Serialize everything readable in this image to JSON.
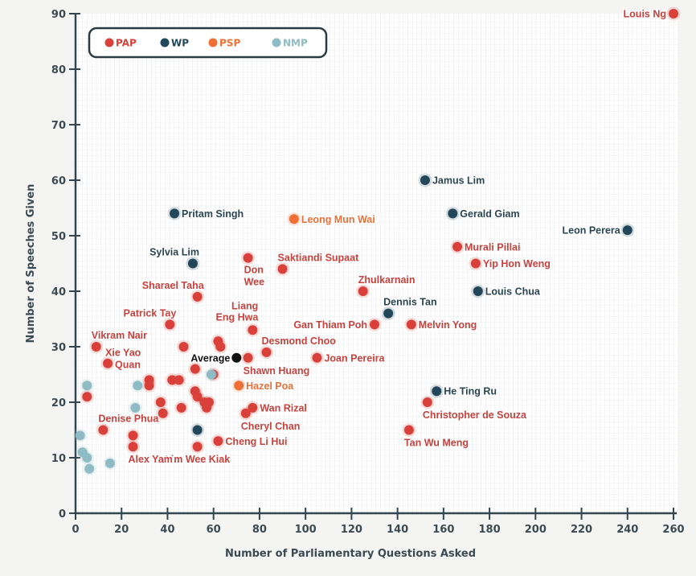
{
  "chart_data": {
    "type": "scatter",
    "title": "",
    "xlabel": "Number of Parliamentary Questions Asked",
    "ylabel": "Number of Speeches Given",
    "xlim": [
      0,
      260
    ],
    "ylim": [
      0,
      90
    ],
    "xticks": [
      0,
      20,
      40,
      60,
      80,
      100,
      120,
      140,
      160,
      180,
      200,
      220,
      240,
      260
    ],
    "yticks": [
      0,
      10,
      20,
      30,
      40,
      50,
      60,
      70,
      80,
      90
    ],
    "grid": true,
    "legend_position": "top-left",
    "legend": [
      {
        "key": "PAP",
        "label": "PAP",
        "color": "#d9403a"
      },
      {
        "key": "WP",
        "label": "WP",
        "color": "#22475a"
      },
      {
        "key": "PSP",
        "label": "PSP",
        "color": "#ee7034"
      },
      {
        "key": "NMP",
        "label": "NMP",
        "color": "#8fbcc4"
      }
    ],
    "average": {
      "label": "Average",
      "x": 70,
      "y": 28,
      "color": "#111111"
    },
    "points": [
      {
        "name": "Louis Ng",
        "party": "PAP",
        "x": 260,
        "y": 90,
        "label_side": "left"
      },
      {
        "name": "Jamus Lim",
        "party": "WP",
        "x": 152,
        "y": 60,
        "label_side": "right"
      },
      {
        "name": "Gerald Giam",
        "party": "WP",
        "x": 164,
        "y": 54,
        "label_side": "right"
      },
      {
        "name": "Leon Perera",
        "party": "WP",
        "x": 240,
        "y": 51,
        "label_side": "left"
      },
      {
        "name": "Pritam Singh",
        "party": "WP",
        "x": 43,
        "y": 54,
        "label_side": "right"
      },
      {
        "name": "Leong Mun Wai",
        "party": "PSP",
        "x": 95,
        "y": 53,
        "label_side": "right"
      },
      {
        "name": "Murali Pillai",
        "party": "PAP",
        "x": 166,
        "y": 48,
        "label_side": "right"
      },
      {
        "name": "Yip Hon Weng",
        "party": "PAP",
        "x": 174,
        "y": 45,
        "label_side": "right"
      },
      {
        "name": "Louis Chua",
        "party": "WP",
        "x": 175,
        "y": 40,
        "label_side": "right"
      },
      {
        "name": "Sylvia Lim",
        "party": "WP",
        "x": 51,
        "y": 45,
        "label_side": "top-left"
      },
      {
        "name": "Don Wee",
        "party": "PAP",
        "x": 75,
        "y": 46,
        "label_side": "below-two"
      },
      {
        "name": "Saktiandi Supaat",
        "party": "PAP",
        "x": 90,
        "y": 44,
        "label_side": "top-right"
      },
      {
        "name": "Zhulkarnain",
        "party": "PAP",
        "x": 125,
        "y": 40,
        "label_side": "top-right"
      },
      {
        "name": "Dennis Tan",
        "party": "WP",
        "x": 136,
        "y": 36,
        "label_side": "top-right"
      },
      {
        "name": "Gan Thiam Poh",
        "party": "PAP",
        "x": 130,
        "y": 34,
        "label_side": "left"
      },
      {
        "name": "Melvin Yong",
        "party": "PAP",
        "x": 146,
        "y": 34,
        "label_side": "right"
      },
      {
        "name": "Sharael Taha",
        "party": "PAP",
        "x": 53,
        "y": 39,
        "label_side": "top-left"
      },
      {
        "name": "Patrick Tay",
        "party": "PAP",
        "x": 41,
        "y": 34,
        "label_side": "top-left"
      },
      {
        "name": "Liang Eng Hwa",
        "party": "PAP",
        "x": 77,
        "y": 33,
        "label_side": "above-two"
      },
      {
        "name": "Desmond Choo",
        "party": "PAP",
        "x": 83,
        "y": 29,
        "label_side": "top-right"
      },
      {
        "name": "Joan Pereira",
        "party": "PAP",
        "x": 105,
        "y": 28,
        "label_side": "right"
      },
      {
        "name": "Shawn Huang",
        "party": "PAP",
        "x": 75,
        "y": 28,
        "label_side": "below-right"
      },
      {
        "name": "Vikram Nair",
        "party": "PAP",
        "x": 9,
        "y": 30,
        "label_side": "top-right"
      },
      {
        "name": "Xie Yao Quan",
        "party": "PAP",
        "x": 14,
        "y": 27,
        "label_side": "right-two"
      },
      {
        "name": "Hazel Poa",
        "party": "PSP",
        "x": 71,
        "y": 23,
        "label_side": "right"
      },
      {
        "name": "He Ting Ru",
        "party": "WP",
        "x": 157,
        "y": 22,
        "label_side": "right"
      },
      {
        "name": "Christopher de Souza",
        "party": "PAP",
        "x": 153,
        "y": 20,
        "label_side": "below-right"
      },
      {
        "name": "Tan Wu Meng",
        "party": "PAP",
        "x": 145,
        "y": 15,
        "label_side": "below-right"
      },
      {
        "name": "Wan Rizal",
        "party": "PAP",
        "x": 77,
        "y": 19,
        "label_side": "right"
      },
      {
        "name": "Cheryl Chan",
        "party": "PAP",
        "x": 74,
        "y": 18,
        "label_side": "below-right"
      },
      {
        "name": "Cheng Li Hui",
        "party": "PAP",
        "x": 62,
        "y": 13,
        "label_side": "right"
      },
      {
        "name": "Lim Wee Kiak",
        "party": "PAP",
        "x": 53,
        "y": 12,
        "label_side": "below-center"
      },
      {
        "name": "Alex Yam",
        "party": "PAP",
        "x": 25,
        "y": 12,
        "label_side": "below-right"
      },
      {
        "name": "Denise Phua",
        "party": "PAP",
        "x": 12,
        "y": 15,
        "label_side": "top-right"
      },
      {
        "name": "",
        "party": "PAP",
        "x": 5,
        "y": 21
      },
      {
        "name": "",
        "party": "PAP",
        "x": 25,
        "y": 14
      },
      {
        "name": "",
        "party": "PAP",
        "x": 32,
        "y": 24
      },
      {
        "name": "",
        "party": "PAP",
        "x": 32,
        "y": 23
      },
      {
        "name": "",
        "party": "PAP",
        "x": 37,
        "y": 20
      },
      {
        "name": "",
        "party": "PAP",
        "x": 38,
        "y": 18
      },
      {
        "name": "",
        "party": "PAP",
        "x": 42,
        "y": 24
      },
      {
        "name": "",
        "party": "PAP",
        "x": 45,
        "y": 24
      },
      {
        "name": "",
        "party": "PAP",
        "x": 46,
        "y": 19
      },
      {
        "name": "",
        "party": "PAP",
        "x": 47,
        "y": 30
      },
      {
        "name": "",
        "party": "PAP",
        "x": 52,
        "y": 26
      },
      {
        "name": "",
        "party": "PAP",
        "x": 52,
        "y": 22
      },
      {
        "name": "",
        "party": "PAP",
        "x": 53,
        "y": 21
      },
      {
        "name": "",
        "party": "PAP",
        "x": 56,
        "y": 20
      },
      {
        "name": "",
        "party": "PAP",
        "x": 57,
        "y": 19
      },
      {
        "name": "",
        "party": "PAP",
        "x": 58,
        "y": 20
      },
      {
        "name": "",
        "party": "PAP",
        "x": 62,
        "y": 31
      },
      {
        "name": "",
        "party": "PAP",
        "x": 63,
        "y": 30
      },
      {
        "name": "",
        "party": "PAP",
        "x": 60,
        "y": 25
      },
      {
        "name": "",
        "party": "WP",
        "x": 53,
        "y": 15
      },
      {
        "name": "",
        "party": "NMP",
        "x": 5,
        "y": 23
      },
      {
        "name": "",
        "party": "NMP",
        "x": 2,
        "y": 14
      },
      {
        "name": "",
        "party": "NMP",
        "x": 3,
        "y": 11
      },
      {
        "name": "",
        "party": "NMP",
        "x": 5,
        "y": 10
      },
      {
        "name": "",
        "party": "NMP",
        "x": 6,
        "y": 8
      },
      {
        "name": "",
        "party": "NMP",
        "x": 15,
        "y": 9
      },
      {
        "name": "",
        "party": "NMP",
        "x": 26,
        "y": 19
      },
      {
        "name": "",
        "party": "NMP",
        "x": 27,
        "y": 23
      },
      {
        "name": "",
        "party": "NMP",
        "x": 59,
        "y": 25
      }
    ]
  }
}
